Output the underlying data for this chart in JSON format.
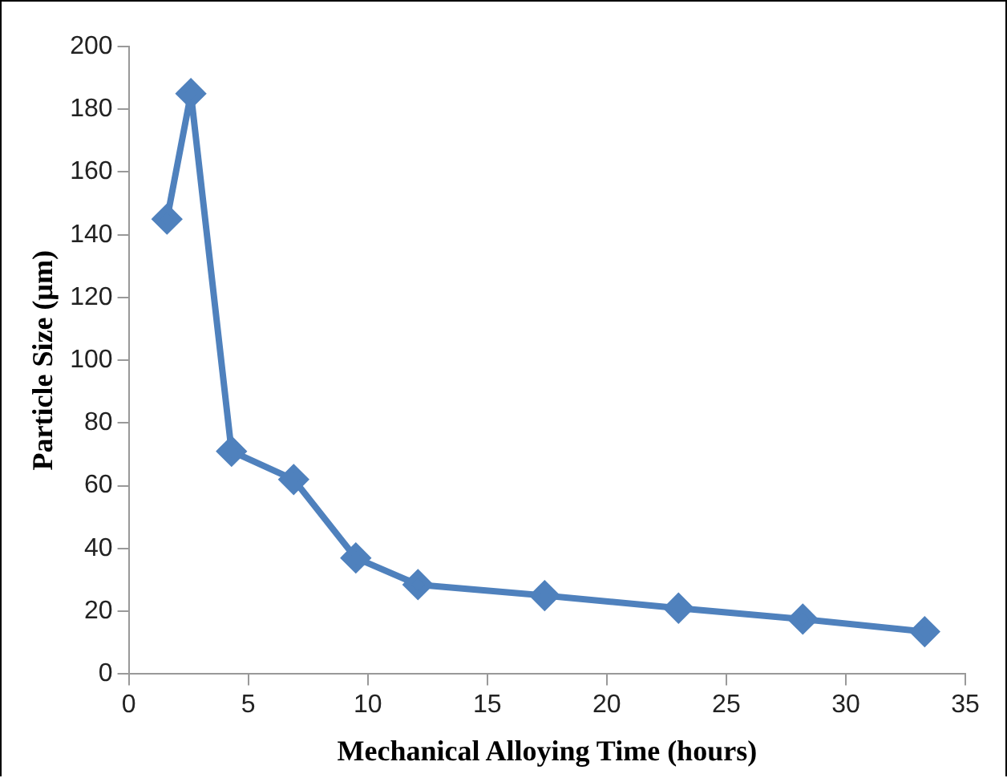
{
  "chart_data": {
    "type": "line",
    "xlabel": "Mechanical Alloying Time (hours)",
    "ylabel": "Particle Size (µm)",
    "x": [
      1.6,
      2.6,
      4.3,
      6.9,
      9.5,
      12.1,
      17.4,
      23.0,
      28.2,
      33.3
    ],
    "series": [
      {
        "color": "#4f81bd",
        "values": [
          145,
          185,
          71,
          62,
          37,
          28.5,
          25,
          21,
          17.5,
          13.5
        ]
      }
    ],
    "xlim": [
      0,
      35
    ],
    "xticks": [
      0,
      5,
      10,
      15,
      20,
      25,
      30,
      35
    ],
    "ylim": [
      0,
      200
    ],
    "yticks": [
      0,
      20,
      40,
      60,
      80,
      100,
      120,
      140,
      160,
      180,
      200
    ],
    "grid": false,
    "legend": false,
    "marker": "diamond",
    "line_style": "solid"
  }
}
